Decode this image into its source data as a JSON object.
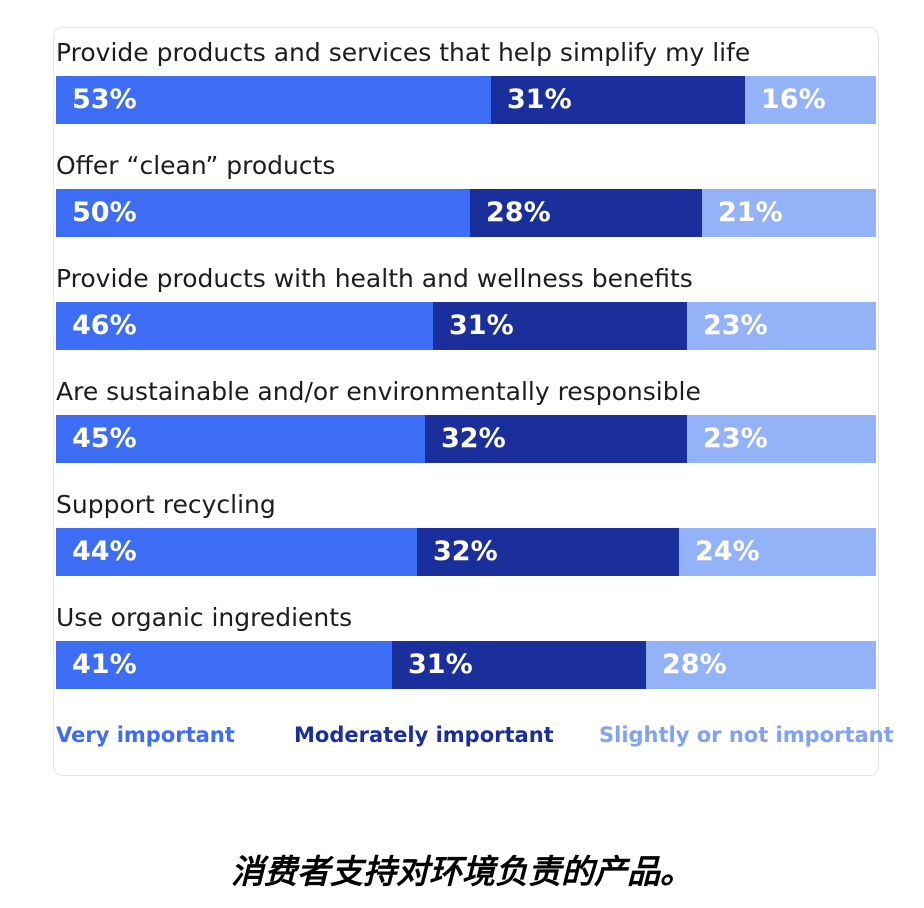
{
  "colors": {
    "very": "#3d6cf5",
    "moderately": "#1a2e9c",
    "slightly": "#94b2f8",
    "legend_very": "#3d6cf5",
    "legend_moderately": "#1a2e9c",
    "legend_slightly": "#7fa2f6"
  },
  "chart_data": {
    "type": "bar",
    "stacked": true,
    "orientation": "horizontal",
    "categories": [
      "Provide products and services that help simplify my life",
      "Offer “clean” products",
      "Provide products with health and wellness benefits",
      "Are sustainable and/or environmentally responsible",
      "Support recycling",
      "Use organic ingredients"
    ],
    "series": [
      {
        "name": "Very important",
        "values": [
          53,
          50,
          46,
          45,
          44,
          41
        ]
      },
      {
        "name": "Moderately important",
        "values": [
          31,
          28,
          31,
          32,
          32,
          31
        ]
      },
      {
        "name": "Slightly or not important",
        "values": [
          16,
          21,
          23,
          23,
          24,
          28
        ]
      }
    ],
    "value_suffix": "%",
    "legend_position": "bottom"
  },
  "caption": "消费者支持对环境负责的产品。"
}
